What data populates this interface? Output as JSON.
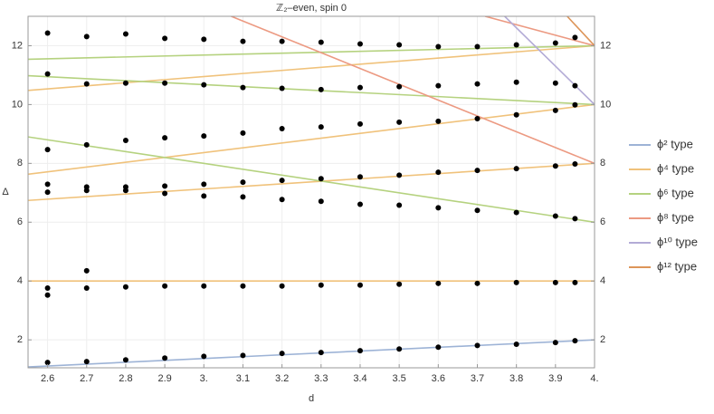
{
  "chart_data": {
    "type": "line",
    "title": "ℤ₂–even, spin 0",
    "x_label": "d",
    "y_label": "Δ",
    "xlim": [
      2.55,
      4
    ],
    "ylim": [
      1.05,
      13
    ],
    "xticks": [
      2.6,
      2.7,
      2.8,
      2.9,
      {
        "value": 3,
        "label": "3."
      },
      3.1,
      3.2,
      3.3,
      3.4,
      3.5,
      3.6,
      3.7,
      3.8,
      3.9,
      {
        "value": 4,
        "label": "4."
      }
    ],
    "yticks": [
      2,
      4,
      6,
      8,
      10,
      12
    ],
    "grid": true,
    "legend": "right",
    "series": [
      {
        "name": "ϕ² type",
        "color": "#9db3d6",
        "lines": [
          {
            "x": [
              2.55,
              4
            ],
            "values": [
              1.08,
              2
            ]
          }
        ]
      },
      {
        "name": "ϕ⁴ type",
        "color": "#f0c27b",
        "lines": [
          {
            "x": [
              2.55,
              4
            ],
            "values": [
              4,
              4
            ]
          },
          {
            "x": [
              2.55,
              4
            ],
            "values": [
              6.74,
              8
            ]
          },
          {
            "x": [
              2.55,
              4
            ],
            "values": [
              7.63,
              10
            ]
          },
          {
            "x": [
              2.55,
              4
            ],
            "values": [
              10.48,
              12
            ]
          }
        ]
      },
      {
        "name": "ϕ⁶ type",
        "color": "#b5d27f",
        "lines": [
          {
            "x": [
              2.55,
              4
            ],
            "values": [
              11.54,
              12
            ]
          },
          {
            "x": [
              2.55,
              4
            ],
            "values": [
              10.98,
              10
            ]
          },
          {
            "x": [
              2.55,
              4
            ],
            "values": [
              8.9,
              6
            ]
          }
        ]
      },
      {
        "name": "ϕ⁸ type",
        "color": "#ec9a82",
        "lines": [
          {
            "x": [
              3.07,
              4
            ],
            "values": [
              13,
              8
            ]
          },
          {
            "x": [
              3.72,
              4
            ],
            "values": [
              13,
              12
            ]
          }
        ]
      },
      {
        "name": "ϕ¹⁰ type",
        "color": "#b3abd6",
        "lines": [
          {
            "x": [
              3.77,
              4
            ],
            "values": [
              13,
              10
            ]
          }
        ]
      },
      {
        "name": "ϕ¹² type",
        "color": "#dd9559",
        "lines": [
          {
            "x": [
              3.93,
              4
            ],
            "values": [
              13,
              12
            ]
          }
        ]
      }
    ],
    "points": {
      "color": "#000000",
      "x": [
        2.6,
        2.7,
        2.8,
        2.9,
        3.0,
        3.1,
        3.2,
        3.3,
        3.4,
        3.5,
        3.6,
        3.7,
        3.8,
        3.9,
        3.95,
        2.6,
        2.6,
        2.7,
        2.7,
        2.8,
        2.9,
        3.0,
        3.1,
        3.2,
        3.3,
        3.4,
        3.5,
        3.6,
        3.7,
        3.8,
        3.9,
        3.95,
        2.6,
        2.6,
        2.7,
        2.7,
        2.8,
        2.8,
        2.9,
        2.9,
        3.0,
        3.0,
        3.1,
        3.1,
        3.2,
        3.2,
        3.3,
        3.3,
        3.4,
        3.4,
        3.5,
        3.5,
        3.6,
        3.6,
        3.7,
        3.7,
        3.8,
        3.8,
        3.9,
        3.9,
        3.95,
        3.95,
        2.6,
        2.7,
        2.8,
        2.9,
        3.0,
        3.1,
        3.2,
        3.3,
        3.4,
        3.5,
        3.6,
        3.7,
        3.8,
        3.9,
        3.95,
        2.6,
        2.7,
        2.8,
        2.9,
        3.0,
        3.1,
        3.2,
        3.3,
        3.4,
        3.5,
        3.6,
        3.7,
        3.8,
        3.9,
        3.95,
        2.6,
        2.7,
        2.8,
        2.9,
        3.0,
        3.1,
        3.2,
        3.3,
        3.4,
        3.5,
        3.6,
        3.7,
        3.8,
        3.9,
        3.95
      ],
      "values": [
        1.23,
        1.26,
        1.32,
        1.38,
        1.44,
        1.47,
        1.54,
        1.57,
        1.63,
        1.69,
        1.75,
        1.81,
        1.85,
        1.91,
        1.97,
        3.76,
        3.52,
        3.76,
        4.35,
        3.8,
        3.83,
        3.83,
        3.83,
        3.83,
        3.86,
        3.86,
        3.89,
        3.92,
        3.92,
        3.95,
        3.95,
        3.95,
        7.02,
        7.29,
        7.08,
        7.2,
        7.08,
        7.2,
        6.98,
        7.23,
        6.89,
        7.29,
        6.86,
        7.36,
        6.77,
        7.42,
        6.71,
        7.48,
        6.61,
        7.54,
        6.58,
        7.6,
        6.49,
        7.7,
        6.4,
        7.76,
        6.33,
        7.82,
        6.21,
        7.91,
        6.12,
        7.98,
        8.47,
        8.63,
        8.78,
        8.87,
        8.93,
        9.03,
        9.18,
        9.24,
        9.34,
        9.4,
        9.43,
        9.52,
        9.65,
        9.8,
        9.99,
        11.04,
        10.7,
        10.73,
        10.73,
        10.67,
        10.58,
        10.55,
        10.51,
        10.58,
        10.61,
        10.64,
        10.7,
        10.76,
        10.73,
        10.64,
        12.43,
        12.31,
        12.4,
        12.25,
        12.22,
        12.15,
        12.15,
        12.12,
        12.06,
        12.03,
        11.97,
        11.97,
        12.03,
        12.09,
        12.28
      ]
    }
  }
}
